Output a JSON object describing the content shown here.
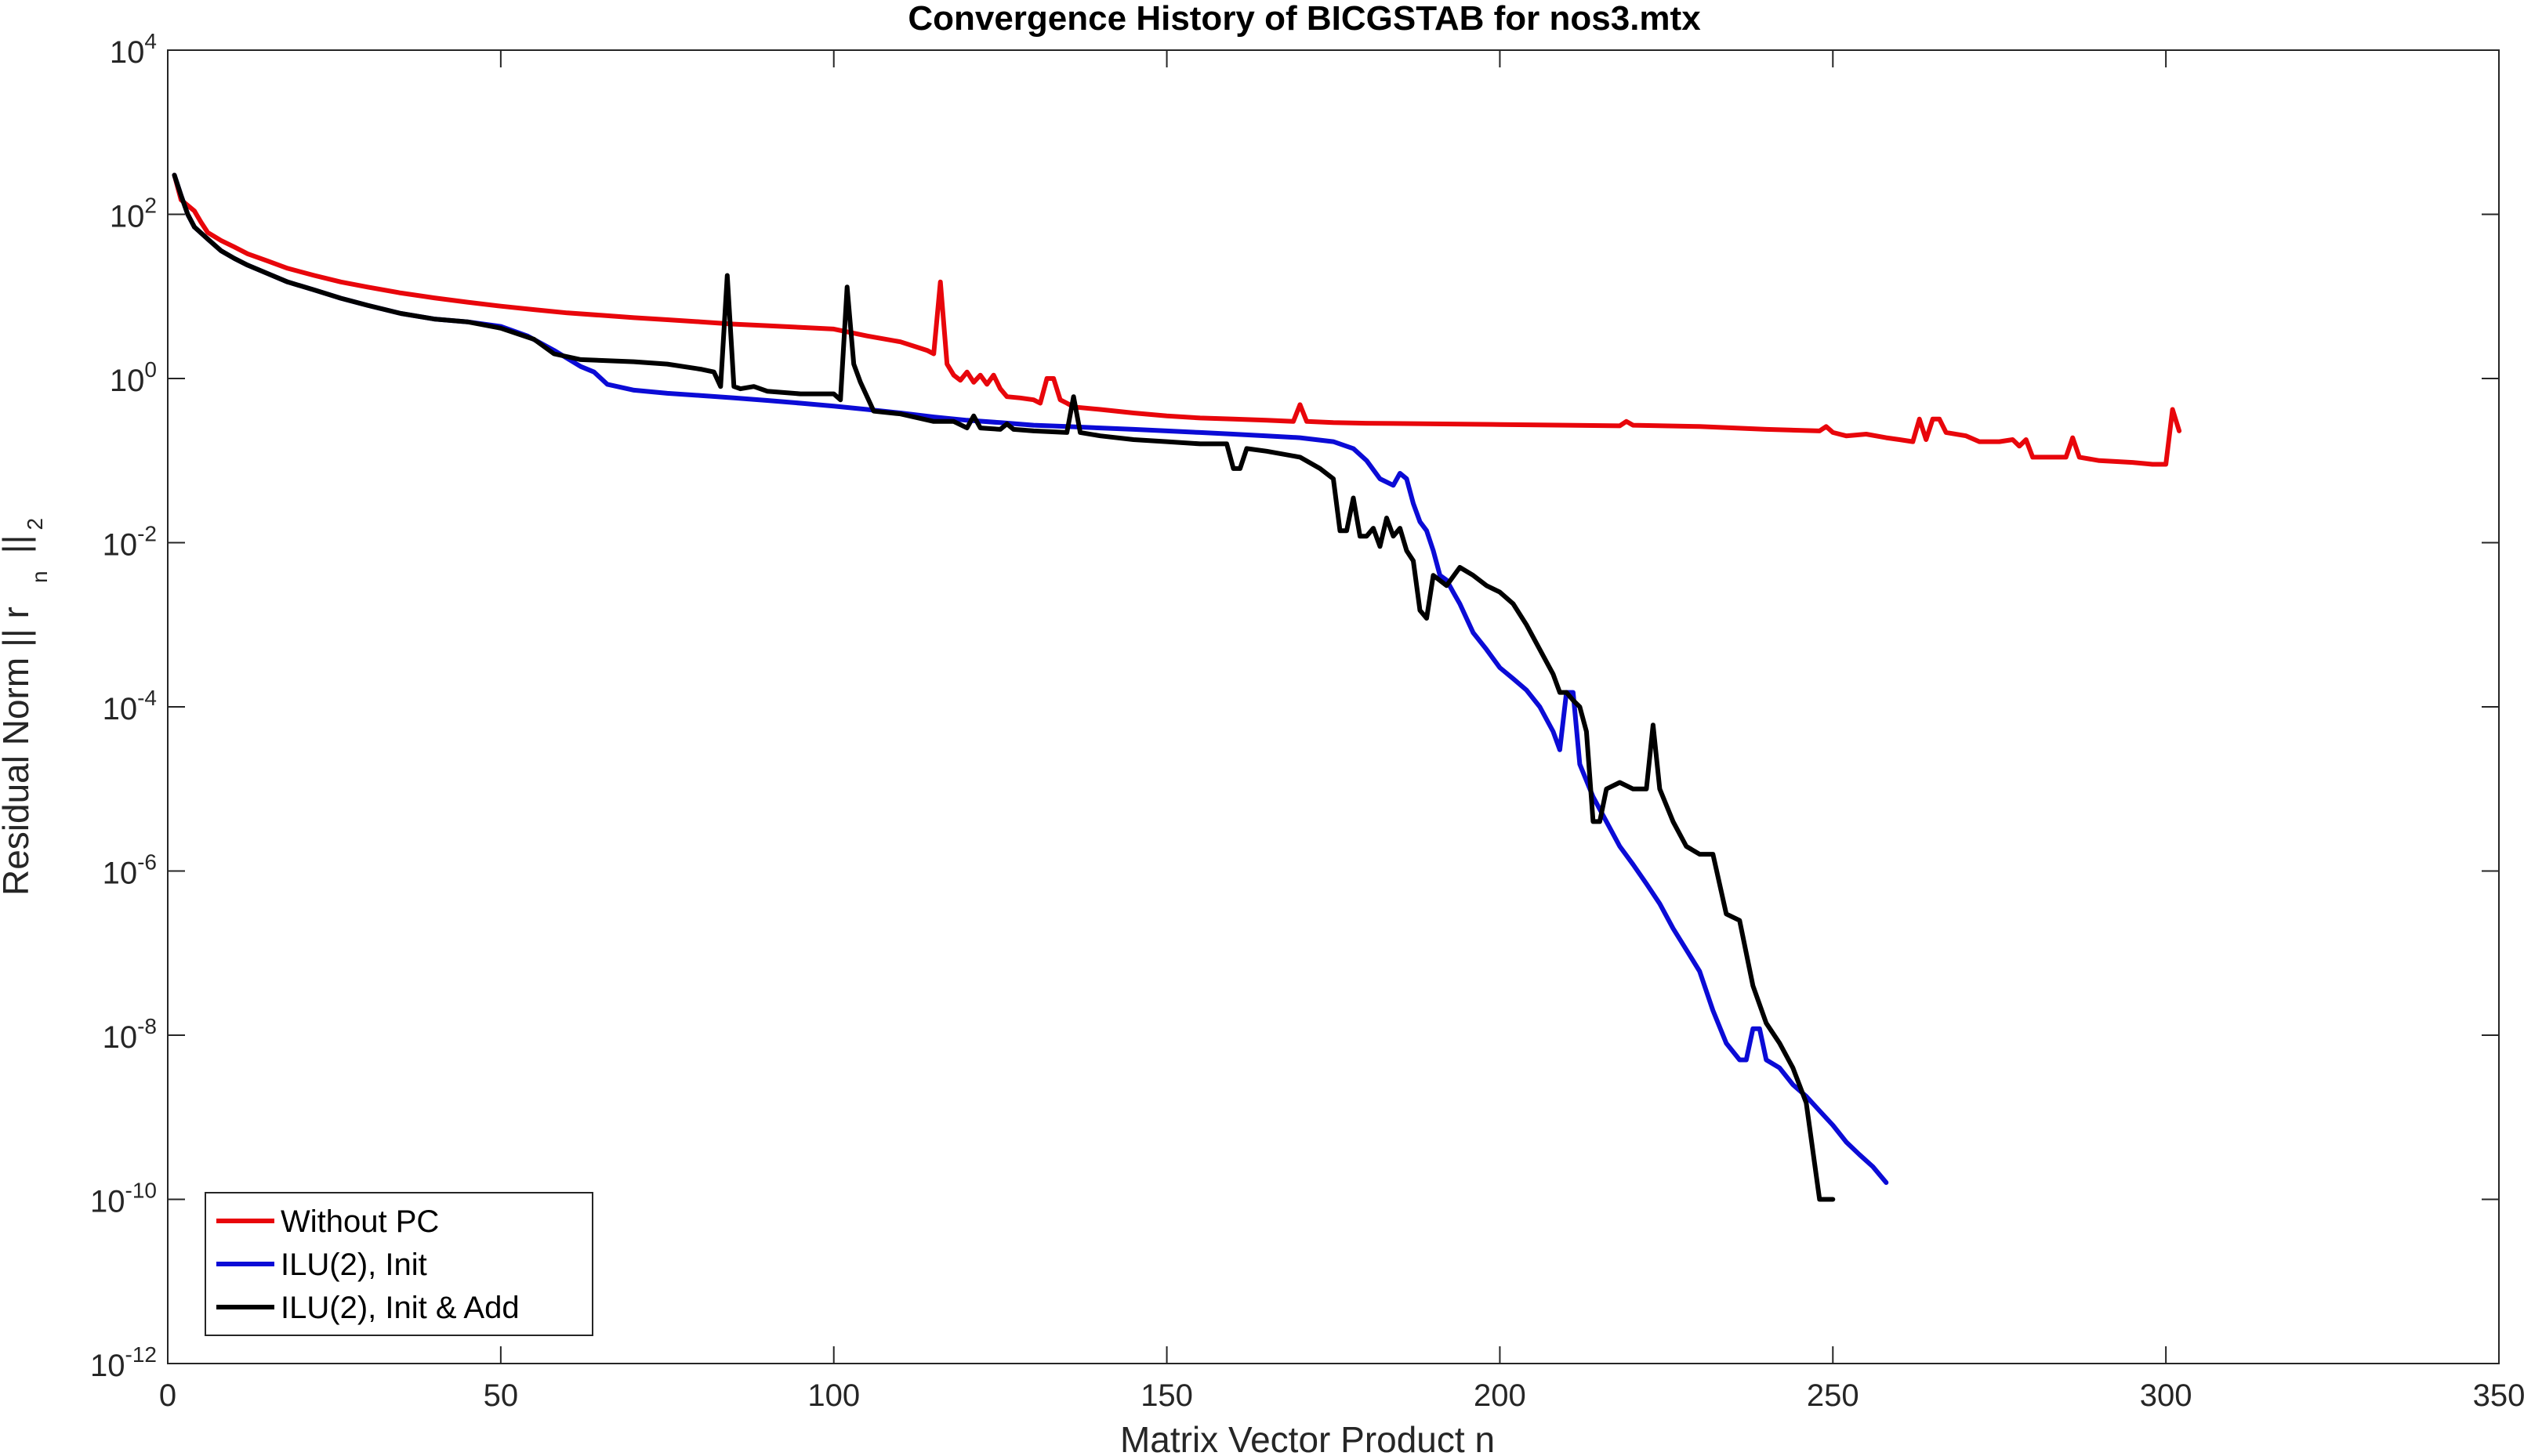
{
  "chart_data": {
    "type": "line",
    "title": "Convergence History of BICGSTAB for nos3.mtx",
    "xlabel": "Matrix Vector Product n",
    "ylabel_parts": [
      "Residual Norm  || r",
      "n",
      "||",
      "2"
    ],
    "xlim": [
      0,
      350
    ],
    "ylim": [
      1e-12,
      10000.0
    ],
    "yscale": "log",
    "grid": false,
    "legend_position": "bottom-left",
    "x_ticks": [
      "0",
      "50",
      "100",
      "150",
      "200",
      "250",
      "300",
      "350"
    ],
    "y_ticks": [
      {
        "base": "10",
        "exp": "4"
      },
      {
        "base": "10",
        "exp": "2"
      },
      {
        "base": "10",
        "exp": "0"
      },
      {
        "base": "10",
        "exp": "-2"
      },
      {
        "base": "10",
        "exp": "-4"
      },
      {
        "base": "10",
        "exp": "-6"
      },
      {
        "base": "10",
        "exp": "-8"
      },
      {
        "base": "10",
        "exp": "-10"
      },
      {
        "base": "10",
        "exp": "-12"
      }
    ],
    "series": [
      {
        "name": "Without PC",
        "color": "#e8060b",
        "points": [
          [
            1,
            300
          ],
          [
            2,
            150
          ],
          [
            4,
            110
          ],
          [
            5,
            80
          ],
          [
            6,
            60
          ],
          [
            8,
            48
          ],
          [
            10,
            40
          ],
          [
            12,
            33
          ],
          [
            15,
            27
          ],
          [
            18,
            22
          ],
          [
            22,
            18
          ],
          [
            26,
            15
          ],
          [
            30,
            13
          ],
          [
            35,
            11
          ],
          [
            40,
            9.6
          ],
          [
            45,
            8.5
          ],
          [
            50,
            7.6
          ],
          [
            55,
            6.9
          ],
          [
            60,
            6.3
          ],
          [
            65,
            5.9
          ],
          [
            70,
            5.5
          ],
          [
            75,
            5.2
          ],
          [
            80,
            4.9
          ],
          [
            85,
            4.6
          ],
          [
            90,
            4.4
          ],
          [
            95,
            4.2
          ],
          [
            100,
            4.0
          ],
          [
            105,
            3.3
          ],
          [
            110,
            2.8
          ],
          [
            114,
            2.2
          ],
          [
            115,
            2.0
          ],
          [
            116,
            15
          ],
          [
            117,
            1.5
          ],
          [
            118,
            1.1
          ],
          [
            119,
            0.95
          ],
          [
            120,
            1.2
          ],
          [
            121,
            0.9
          ],
          [
            122,
            1.1
          ],
          [
            123,
            0.85
          ],
          [
            124,
            1.1
          ],
          [
            125,
            0.75
          ],
          [
            126,
            0.6
          ],
          [
            128,
            0.58
          ],
          [
            130,
            0.55
          ],
          [
            131,
            0.5
          ],
          [
            132,
            1.0
          ],
          [
            133,
            1.0
          ],
          [
            134,
            0.55
          ],
          [
            135,
            0.5
          ],
          [
            136,
            0.45
          ],
          [
            140,
            0.42
          ],
          [
            145,
            0.38
          ],
          [
            150,
            0.35
          ],
          [
            155,
            0.33
          ],
          [
            160,
            0.32
          ],
          [
            165,
            0.31
          ],
          [
            169,
            0.3
          ],
          [
            170,
            0.48
          ],
          [
            171,
            0.3
          ],
          [
            175,
            0.29
          ],
          [
            180,
            0.285
          ],
          [
            190,
            0.28
          ],
          [
            200,
            0.275
          ],
          [
            210,
            0.27
          ],
          [
            218,
            0.265
          ],
          [
            219,
            0.3
          ],
          [
            220,
            0.27
          ],
          [
            230,
            0.26
          ],
          [
            240,
            0.24
          ],
          [
            248,
            0.23
          ],
          [
            249,
            0.26
          ],
          [
            250,
            0.22
          ],
          [
            252,
            0.2
          ],
          [
            255,
            0.21
          ],
          [
            258,
            0.19
          ],
          [
            260,
            0.18
          ],
          [
            262,
            0.17
          ],
          [
            263,
            0.32
          ],
          [
            264,
            0.18
          ],
          [
            265,
            0.32
          ],
          [
            266,
            0.32
          ],
          [
            267,
            0.22
          ],
          [
            270,
            0.2
          ],
          [
            272,
            0.17
          ],
          [
            275,
            0.17
          ],
          [
            277,
            0.18
          ],
          [
            278,
            0.15
          ],
          [
            279,
            0.18
          ],
          [
            280,
            0.11
          ],
          [
            282,
            0.11
          ],
          [
            285,
            0.11
          ],
          [
            286,
            0.19
          ],
          [
            287,
            0.11
          ],
          [
            290,
            0.1
          ],
          [
            295,
            0.095
          ],
          [
            298,
            0.09
          ],
          [
            300,
            0.09
          ],
          [
            301,
            0.42
          ],
          [
            302,
            0.23
          ]
        ]
      },
      {
        "name": "ILU(2), Init",
        "color": "#0b0bd6",
        "points": [
          [
            1,
            300
          ],
          [
            2,
            170
          ],
          [
            3,
            100
          ],
          [
            4,
            70
          ],
          [
            6,
            50
          ],
          [
            8,
            36
          ],
          [
            10,
            29
          ],
          [
            12,
            24
          ],
          [
            15,
            19
          ],
          [
            18,
            15
          ],
          [
            22,
            12
          ],
          [
            26,
            9.5
          ],
          [
            30,
            7.8
          ],
          [
            35,
            6.2
          ],
          [
            40,
            5.3
          ],
          [
            45,
            4.9
          ],
          [
            50,
            4.3
          ],
          [
            54,
            3.3
          ],
          [
            58,
            2.2
          ],
          [
            62,
            1.4
          ],
          [
            64,
            1.2
          ],
          [
            66,
            0.85
          ],
          [
            70,
            0.72
          ],
          [
            75,
            0.66
          ],
          [
            80,
            0.62
          ],
          [
            85,
            0.58
          ],
          [
            90,
            0.54
          ],
          [
            95,
            0.5
          ],
          [
            100,
            0.46
          ],
          [
            105,
            0.42
          ],
          [
            110,
            0.38
          ],
          [
            115,
            0.34
          ],
          [
            120,
            0.31
          ],
          [
            125,
            0.29
          ],
          [
            130,
            0.27
          ],
          [
            135,
            0.26
          ],
          [
            140,
            0.25
          ],
          [
            145,
            0.24
          ],
          [
            150,
            0.23
          ],
          [
            155,
            0.22
          ],
          [
            160,
            0.21
          ],
          [
            165,
            0.2
          ],
          [
            170,
            0.19
          ],
          [
            175,
            0.17
          ],
          [
            178,
            0.14
          ],
          [
            180,
            0.1
          ],
          [
            182,
            0.06
          ],
          [
            184,
            0.05
          ],
          [
            185,
            0.07
          ],
          [
            186,
            0.06
          ],
          [
            187,
            0.03
          ],
          [
            188,
            0.018
          ],
          [
            189,
            0.014
          ],
          [
            190,
            0.008
          ],
          [
            191,
            0.004
          ],
          [
            192,
            0.0035
          ],
          [
            193,
            0.0025
          ],
          [
            194,
            0.0018
          ],
          [
            195,
            0.0012
          ],
          [
            196,
            0.0008
          ],
          [
            198,
            0.0005
          ],
          [
            200,
            0.0003
          ],
          [
            202,
            0.00022
          ],
          [
            204,
            0.00016
          ],
          [
            206,
            0.0001
          ],
          [
            208,
            5e-05
          ],
          [
            209,
            3e-05
          ],
          [
            210,
            0.00015
          ],
          [
            211,
            0.00015
          ],
          [
            212,
            2e-05
          ],
          [
            214,
            8e-06
          ],
          [
            216,
            4e-06
          ],
          [
            218,
            2e-06
          ],
          [
            220,
            1.2e-06
          ],
          [
            222,
            7e-07
          ],
          [
            224,
            4e-07
          ],
          [
            226,
            2e-07
          ],
          [
            228,
            1.1e-07
          ],
          [
            230,
            6e-08
          ],
          [
            232,
            2e-08
          ],
          [
            234,
            8e-09
          ],
          [
            236,
            5e-09
          ],
          [
            237,
            5e-09
          ],
          [
            238,
            1.2e-08
          ],
          [
            239,
            1.2e-08
          ],
          [
            240,
            5e-09
          ],
          [
            242,
            4e-09
          ],
          [
            244,
            2.5e-09
          ],
          [
            246,
            1.8e-09
          ],
          [
            248,
            1.2e-09
          ],
          [
            250,
            8e-10
          ],
          [
            252,
            5e-10
          ],
          [
            254,
            3.5e-10
          ],
          [
            256,
            2.5e-10
          ],
          [
            258,
            1.6e-10
          ]
        ]
      },
      {
        "name": "ILU(2), Init & Add",
        "color": "#000000",
        "points": [
          [
            1,
            300
          ],
          [
            2,
            170
          ],
          [
            3,
            100
          ],
          [
            4,
            70
          ],
          [
            6,
            50
          ],
          [
            8,
            36
          ],
          [
            10,
            29
          ],
          [
            12,
            24
          ],
          [
            15,
            19
          ],
          [
            18,
            15
          ],
          [
            22,
            12
          ],
          [
            26,
            9.5
          ],
          [
            30,
            7.8
          ],
          [
            35,
            6.2
          ],
          [
            40,
            5.3
          ],
          [
            45,
            4.9
          ],
          [
            50,
            4.1
          ],
          [
            55,
            3.0
          ],
          [
            58,
            2.0
          ],
          [
            62,
            1.7
          ],
          [
            70,
            1.6
          ],
          [
            75,
            1.5
          ],
          [
            80,
            1.3
          ],
          [
            82,
            1.2
          ],
          [
            83,
            0.8
          ],
          [
            84,
            18
          ],
          [
            85,
            0.8
          ],
          [
            86,
            0.75
          ],
          [
            88,
            0.8
          ],
          [
            90,
            0.7
          ],
          [
            95,
            0.65
          ],
          [
            100,
            0.65
          ],
          [
            101,
            0.55
          ],
          [
            102,
            13
          ],
          [
            103,
            1.5
          ],
          [
            104,
            0.9
          ],
          [
            106,
            0.4
          ],
          [
            110,
            0.37
          ],
          [
            115,
            0.3
          ],
          [
            118,
            0.3
          ],
          [
            120,
            0.25
          ],
          [
            121,
            0.35
          ],
          [
            122,
            0.25
          ],
          [
            125,
            0.24
          ],
          [
            126,
            0.28
          ],
          [
            127,
            0.24
          ],
          [
            130,
            0.23
          ],
          [
            135,
            0.22
          ],
          [
            136,
            0.6
          ],
          [
            137,
            0.22
          ],
          [
            140,
            0.2
          ],
          [
            145,
            0.18
          ],
          [
            150,
            0.17
          ],
          [
            155,
            0.16
          ],
          [
            159,
            0.16
          ],
          [
            160,
            0.08
          ],
          [
            161,
            0.08
          ],
          [
            162,
            0.14
          ],
          [
            165,
            0.13
          ],
          [
            170,
            0.11
          ],
          [
            173,
            0.08
          ],
          [
            175,
            0.06
          ],
          [
            176,
            0.014
          ],
          [
            177,
            0.014
          ],
          [
            178,
            0.035
          ],
          [
            179,
            0.012
          ],
          [
            180,
            0.012
          ],
          [
            181,
            0.015
          ],
          [
            182,
            0.009
          ],
          [
            183,
            0.02
          ],
          [
            184,
            0.012
          ],
          [
            185,
            0.015
          ],
          [
            186,
            0.008
          ],
          [
            187,
            0.006
          ],
          [
            188,
            0.0015
          ],
          [
            189,
            0.0012
          ],
          [
            190,
            0.004
          ],
          [
            192,
            0.003
          ],
          [
            194,
            0.005
          ],
          [
            196,
            0.004
          ],
          [
            198,
            0.003
          ],
          [
            200,
            0.0025
          ],
          [
            202,
            0.0018
          ],
          [
            204,
            0.001
          ],
          [
            206,
            0.0005
          ],
          [
            208,
            0.00025
          ],
          [
            209,
            0.00015
          ],
          [
            210,
            0.00015
          ],
          [
            211,
            0.00012
          ],
          [
            212,
            0.0001
          ],
          [
            213,
            5e-05
          ],
          [
            214,
            4e-06
          ],
          [
            215,
            4e-06
          ],
          [
            216,
            1e-05
          ],
          [
            218,
            1.2e-05
          ],
          [
            220,
            1e-05
          ],
          [
            222,
            1e-05
          ],
          [
            223,
            6e-05
          ],
          [
            224,
            1e-05
          ],
          [
            226,
            4e-06
          ],
          [
            228,
            2e-06
          ],
          [
            230,
            1.6e-06
          ],
          [
            232,
            1.6e-06
          ],
          [
            234,
            3e-07
          ],
          [
            236,
            2.5e-07
          ],
          [
            238,
            4e-08
          ],
          [
            240,
            1.4e-08
          ],
          [
            242,
            8e-09
          ],
          [
            244,
            4e-09
          ],
          [
            246,
            1.5e-09
          ],
          [
            248,
            1e-10
          ],
          [
            249,
            1e-10
          ],
          [
            250,
            1e-10
          ]
        ]
      }
    ]
  }
}
